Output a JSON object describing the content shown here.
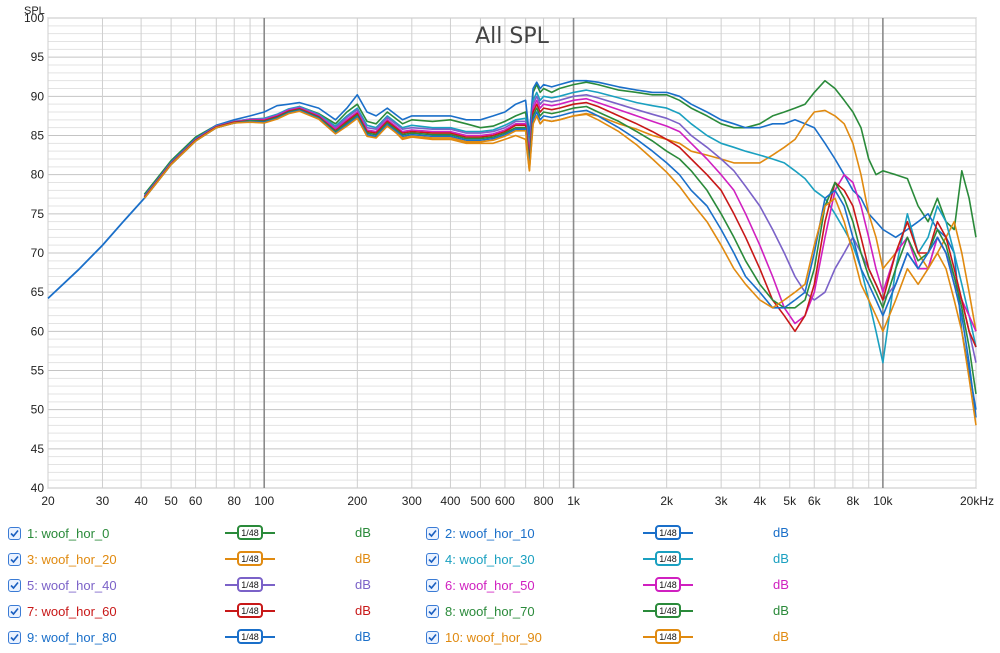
{
  "chart_data": {
    "type": "line",
    "title": "All SPL",
    "ylabel": "SPL",
    "xscale": "log",
    "xlim": [
      20,
      20000
    ],
    "ylim": [
      40,
      100
    ],
    "x_ticks": [
      {
        "v": 20,
        "l": "20"
      },
      {
        "v": 30,
        "l": "30"
      },
      {
        "v": 40,
        "l": "40"
      },
      {
        "v": 50,
        "l": "50"
      },
      {
        "v": 60,
        "l": "60"
      },
      {
        "v": 80,
        "l": "80"
      },
      {
        "v": 100,
        "l": "100"
      },
      {
        "v": 200,
        "l": "200"
      },
      {
        "v": 300,
        "l": "300"
      },
      {
        "v": 400,
        "l": "400"
      },
      {
        "v": 500,
        "l": "500"
      },
      {
        "v": 600,
        "l": "600"
      },
      {
        "v": 800,
        "l": "800"
      },
      {
        "v": 1000,
        "l": "1k"
      },
      {
        "v": 2000,
        "l": "2k"
      },
      {
        "v": 3000,
        "l": "3k"
      },
      {
        "v": 4000,
        "l": "4k"
      },
      {
        "v": 5000,
        "l": "5k"
      },
      {
        "v": 6000,
        "l": "6k"
      },
      {
        "v": 8000,
        "l": "8k"
      },
      {
        "v": 10000,
        "l": "10k"
      },
      {
        "v": 20000,
        "l": "20kHz"
      }
    ],
    "y_ticks": [
      40,
      45,
      50,
      55,
      60,
      65,
      70,
      75,
      80,
      85,
      90,
      95,
      100
    ],
    "common": {
      "x": [
        20,
        25,
        30,
        35,
        41
      ],
      "y": [
        64.2,
        67.8,
        71.0,
        74.0,
        77.0
      ]
    },
    "x": [
      41,
      45,
      50,
      60,
      70,
      80,
      90,
      100,
      110,
      120,
      130,
      150,
      170,
      185,
      200,
      215,
      230,
      250,
      280,
      300,
      350,
      400,
      450,
      500,
      550,
      600,
      650,
      700,
      720,
      740,
      760,
      780,
      800,
      850,
      900,
      1000,
      1100,
      1200,
      1400,
      1600,
      1800,
      2000,
      2200,
      2400,
      2700,
      3000,
      3300,
      3600,
      4000,
      4400,
      4800,
      5200,
      5600,
      6000,
      6500,
      7000,
      7500,
      8000,
      8500,
      9000,
      9500,
      10000,
      11000,
      12000,
      13000,
      14000,
      15000,
      16000,
      17000,
      18000,
      19000,
      20000
    ],
    "series": [
      {
        "name": "woof_hor_0",
        "color": "#2a8a3a",
        "y": [
          77.5,
          79.5,
          81.8,
          84.8,
          86.3,
          86.8,
          87.0,
          87.0,
          87.5,
          88.2,
          88.7,
          87.8,
          86.5,
          88.0,
          89.0,
          86.8,
          86.5,
          88.0,
          86.5,
          87.0,
          86.8,
          87.0,
          86.5,
          86.0,
          86.2,
          86.8,
          87.5,
          88.0,
          84.0,
          90.5,
          91.5,
          90.5,
          91.0,
          90.5,
          91.0,
          91.5,
          91.8,
          91.5,
          90.8,
          90.5,
          90.2,
          90.2,
          89.5,
          88.5,
          87.5,
          86.5,
          86.0,
          86.0,
          86.5,
          87.5,
          88.0,
          88.5,
          89.0,
          90.5,
          92.0,
          91.0,
          89.5,
          88.0,
          86.0,
          82.0,
          80.0,
          80.5,
          80.0,
          79.5,
          76.0,
          74.0,
          77.0,
          74.0,
          73.0,
          80.5,
          77.0,
          72.0
        ]
      },
      {
        "name": "woof_hor_10",
        "color": "#1a6fc9",
        "y": [
          77.3,
          79.3,
          81.6,
          84.6,
          86.3,
          87.0,
          87.5,
          88.0,
          88.8,
          89.0,
          89.2,
          88.5,
          87.0,
          88.5,
          90.2,
          88.0,
          87.5,
          88.5,
          87.0,
          87.5,
          87.5,
          87.5,
          87.0,
          87.0,
          87.5,
          88.0,
          89.0,
          89.5,
          85.0,
          91.0,
          91.8,
          91.0,
          91.5,
          91.2,
          91.5,
          92.0,
          92.0,
          91.8,
          91.2,
          90.8,
          90.5,
          90.5,
          90.0,
          89.0,
          88.0,
          87.0,
          86.5,
          86.0,
          86.0,
          86.5,
          86.5,
          87.0,
          86.5,
          86.0,
          84.0,
          82.0,
          80.0,
          78.0,
          77.0,
          75.0,
          74.0,
          73.0,
          72.0,
          73.0,
          74.0,
          75.0,
          73.0,
          72.0,
          70.0,
          60.0,
          55.0,
          50.0
        ]
      },
      {
        "name": "woof_hor_20",
        "color": "#e08a10",
        "y": [
          77.0,
          79.0,
          81.3,
          84.3,
          86.0,
          86.6,
          86.8,
          86.7,
          87.2,
          88.0,
          88.3,
          87.2,
          85.5,
          86.5,
          87.5,
          85.0,
          84.8,
          86.5,
          84.5,
          84.8,
          84.5,
          84.5,
          84.0,
          84.0,
          84.0,
          84.5,
          85.0,
          84.5,
          80.5,
          86.5,
          87.5,
          86.5,
          87.0,
          86.8,
          87.0,
          87.5,
          87.8,
          87.5,
          86.5,
          85.8,
          85.0,
          84.5,
          84.0,
          83.0,
          82.5,
          82.0,
          81.5,
          81.5,
          81.5,
          82.5,
          83.5,
          84.5,
          86.5,
          88.0,
          88.2,
          87.5,
          86.5,
          84.0,
          80.0,
          75.0,
          72.0,
          68.0,
          70.0,
          74.0,
          70.0,
          68.0,
          70.0,
          72.0,
          74.0,
          70.0,
          65.0,
          60.0
        ]
      },
      {
        "name": "woof_hor_30",
        "color": "#1aa0c0",
        "y": [
          77.2,
          79.2,
          81.5,
          84.5,
          86.2,
          86.8,
          87.1,
          87.2,
          87.7,
          88.4,
          88.7,
          87.7,
          86.2,
          87.5,
          88.5,
          86.3,
          86.0,
          87.5,
          86.0,
          86.3,
          86.0,
          86.0,
          85.5,
          85.5,
          85.7,
          86.3,
          87.0,
          87.2,
          83.5,
          89.5,
          90.5,
          89.5,
          90.0,
          89.8,
          90.0,
          90.5,
          90.8,
          90.5,
          89.8,
          89.2,
          88.8,
          88.5,
          87.8,
          86.5,
          85.0,
          84.0,
          83.5,
          83.0,
          82.5,
          82.0,
          81.5,
          80.5,
          79.5,
          78.0,
          77.0,
          75.0,
          73.0,
          71.0,
          68.0,
          64.0,
          60.0,
          56.0,
          68.0,
          75.0,
          70.0,
          72.0,
          76.0,
          74.0,
          70.0,
          66.0,
          62.0,
          58.0
        ]
      },
      {
        "name": "woof_hor_40",
        "color": "#7b62c8",
        "y": [
          77.2,
          79.2,
          81.5,
          84.5,
          86.2,
          86.8,
          87.1,
          87.1,
          87.6,
          88.3,
          88.6,
          87.6,
          86.0,
          87.3,
          88.3,
          86.0,
          85.8,
          87.3,
          85.8,
          86.0,
          85.8,
          85.8,
          85.3,
          85.3,
          85.5,
          86.0,
          86.8,
          86.8,
          83.0,
          89.0,
          90.0,
          89.0,
          89.5,
          89.3,
          89.5,
          90.0,
          90.2,
          89.8,
          89.0,
          88.3,
          87.7,
          87.2,
          86.5,
          85.0,
          83.5,
          82.0,
          80.5,
          78.5,
          76.0,
          73.0,
          70.0,
          67.0,
          65.0,
          64.0,
          65.0,
          68.0,
          70.0,
          72.0,
          70.0,
          68.0,
          66.0,
          64.0,
          66.0,
          70.0,
          68.0,
          68.0,
          72.0,
          70.0,
          67.0,
          64.0,
          60.0,
          56.0
        ]
      },
      {
        "name": "woof_hor_50",
        "color": "#d020c0",
        "y": [
          77.1,
          79.1,
          81.4,
          84.4,
          86.1,
          86.7,
          87.0,
          87.0,
          87.5,
          88.2,
          88.5,
          87.5,
          85.8,
          87.0,
          88.0,
          85.7,
          85.5,
          87.0,
          85.5,
          85.7,
          85.5,
          85.5,
          85.0,
          85.0,
          85.2,
          85.7,
          86.5,
          86.5,
          82.5,
          88.5,
          89.5,
          88.5,
          89.0,
          88.8,
          89.0,
          89.5,
          89.7,
          89.2,
          88.3,
          87.5,
          86.8,
          86.2,
          85.5,
          84.0,
          82.0,
          80.0,
          78.0,
          75.0,
          71.0,
          67.0,
          63.0,
          61.0,
          62.0,
          65.0,
          72.0,
          78.0,
          80.0,
          79.0,
          76.0,
          72.0,
          68.0,
          65.0,
          70.0,
          72.0,
          68.0,
          68.0,
          72.0,
          70.0,
          66.0,
          64.0,
          62.0,
          60.0
        ]
      },
      {
        "name": "woof_hor_60",
        "color": "#c81818",
        "y": [
          77.1,
          79.1,
          81.4,
          84.4,
          86.1,
          86.7,
          86.9,
          86.9,
          87.4,
          88.1,
          88.4,
          87.4,
          85.6,
          86.8,
          87.8,
          85.5,
          85.3,
          86.8,
          85.3,
          85.5,
          85.3,
          85.3,
          84.8,
          84.8,
          85.0,
          85.5,
          86.3,
          86.3,
          82.0,
          88.0,
          89.0,
          88.0,
          88.5,
          88.3,
          88.5,
          89.0,
          89.2,
          88.7,
          87.5,
          86.5,
          85.5,
          84.5,
          83.5,
          82.0,
          80.0,
          78.0,
          75.0,
          72.0,
          68.0,
          64.0,
          62.0,
          60.0,
          62.0,
          66.0,
          74.0,
          79.0,
          78.0,
          76.0,
          72.0,
          68.0,
          66.0,
          64.0,
          70.0,
          74.0,
          70.0,
          70.0,
          74.0,
          72.0,
          68.0,
          64.0,
          60.0,
          58.0
        ]
      },
      {
        "name": "woof_hor_70",
        "color": "#2a8a3a",
        "y": [
          77.0,
          79.0,
          81.3,
          84.3,
          86.0,
          86.6,
          86.9,
          86.8,
          87.3,
          88.0,
          88.3,
          87.3,
          85.5,
          86.6,
          87.6,
          85.3,
          85.1,
          86.6,
          85.1,
          85.3,
          85.1,
          85.1,
          84.6,
          84.6,
          84.8,
          85.3,
          86.0,
          86.0,
          81.5,
          87.5,
          88.5,
          87.5,
          88.0,
          87.8,
          88.0,
          88.5,
          88.7,
          88.0,
          86.8,
          85.5,
          84.3,
          83.0,
          82.0,
          80.5,
          78.0,
          75.0,
          72.0,
          69.0,
          66.0,
          64.0,
          63.0,
          63.0,
          64.0,
          68.0,
          76.0,
          79.0,
          77.0,
          74.0,
          70.0,
          67.0,
          65.0,
          63.0,
          68.0,
          72.0,
          69.0,
          70.0,
          73.0,
          71.0,
          67.0,
          63.0,
          58.0,
          52.0
        ]
      },
      {
        "name": "woof_hor_80",
        "color": "#1a6fc9",
        "y": [
          77.0,
          79.0,
          81.3,
          84.3,
          86.0,
          86.6,
          86.8,
          86.7,
          87.2,
          87.9,
          88.2,
          87.2,
          85.3,
          86.4,
          87.4,
          85.1,
          84.9,
          86.4,
          84.9,
          85.1,
          84.9,
          84.9,
          84.4,
          84.4,
          84.6,
          85.1,
          85.8,
          85.8,
          81.0,
          87.0,
          88.0,
          87.0,
          87.5,
          87.3,
          87.5,
          88.0,
          88.2,
          87.5,
          86.0,
          84.5,
          83.0,
          81.5,
          80.0,
          78.0,
          76.0,
          73.0,
          70.0,
          67.0,
          65.0,
          63.0,
          63.0,
          64.0,
          65.0,
          70.0,
          77.0,
          78.0,
          76.0,
          72.0,
          68.0,
          66.0,
          64.0,
          62.0,
          66.0,
          70.0,
          68.0,
          70.0,
          72.0,
          70.0,
          66.0,
          62.0,
          56.0,
          49.0
        ]
      },
      {
        "name": "woof_hor_90",
        "color": "#e08a10",
        "y": [
          77.0,
          79.0,
          81.3,
          84.3,
          86.0,
          86.6,
          86.7,
          86.6,
          87.1,
          87.8,
          88.1,
          87.1,
          85.2,
          86.2,
          87.2,
          84.9,
          84.7,
          86.2,
          84.7,
          84.9,
          84.7,
          84.7,
          84.2,
          84.2,
          84.4,
          84.9,
          85.6,
          85.6,
          80.5,
          86.5,
          87.5,
          86.5,
          87.0,
          86.8,
          87.0,
          87.5,
          87.7,
          87.0,
          85.5,
          83.8,
          82.0,
          80.3,
          78.5,
          76.5,
          74.0,
          71.0,
          68.0,
          66.0,
          64.0,
          63.0,
          64.0,
          65.0,
          66.0,
          71.0,
          76.0,
          77.0,
          74.0,
          70.0,
          66.0,
          64.0,
          62.0,
          60.0,
          64.0,
          68.0,
          66.0,
          68.0,
          70.0,
          68.0,
          64.0,
          60.0,
          54.0,
          48.0
        ]
      }
    ]
  },
  "legend": [
    {
      "num": "1:",
      "label": "woof_hor_0",
      "smoothing": "1/48",
      "unit": "dB",
      "color": "#2a8a3a"
    },
    {
      "num": "2:",
      "label": "woof_hor_10",
      "smoothing": "1/48",
      "unit": "dB",
      "color": "#1a6fc9"
    },
    {
      "num": "3:",
      "label": "woof_hor_20",
      "smoothing": "1/48",
      "unit": "dB",
      "color": "#e08a10"
    },
    {
      "num": "4:",
      "label": "woof_hor_30",
      "smoothing": "1/48",
      "unit": "dB",
      "color": "#1aa0c0"
    },
    {
      "num": "5:",
      "label": "woof_hor_40",
      "smoothing": "1/48",
      "unit": "dB",
      "color": "#7b62c8"
    },
    {
      "num": "6:",
      "label": "woof_hor_50",
      "smoothing": "1/48",
      "unit": "dB",
      "color": "#d020c0"
    },
    {
      "num": "7:",
      "label": "woof_hor_60",
      "smoothing": "1/48",
      "unit": "dB",
      "color": "#c81818"
    },
    {
      "num": "8:",
      "label": "woof_hor_70",
      "smoothing": "1/48",
      "unit": "dB",
      "color": "#2a8a3a"
    },
    {
      "num": "9:",
      "label": "woof_hor_80",
      "smoothing": "1/48",
      "unit": "dB",
      "color": "#1a6fc9"
    },
    {
      "num": "10:",
      "label": "woof_hor_90",
      "smoothing": "1/48",
      "unit": "dB",
      "color": "#e08a10"
    }
  ]
}
